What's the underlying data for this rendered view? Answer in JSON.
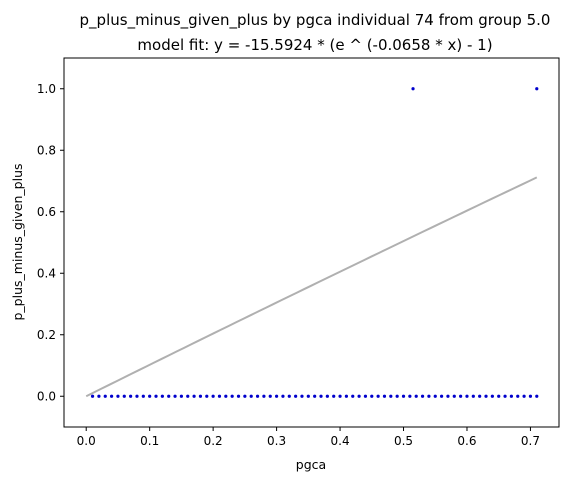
{
  "chart_data": {
    "type": "scatter",
    "title": "p_plus_minus_given_plus by pgca individual 74 from group 5.0",
    "subtitle": "model fit: y = -15.5924 * (e ^ (-0.0658 * x) - 1)",
    "xlabel": "pgca",
    "ylabel": "p_plus_minus_given_plus",
    "xlim": [
      -0.035,
      0.745
    ],
    "ylim": [
      -0.1,
      1.1
    ],
    "xticks": [
      0.0,
      0.1,
      0.2,
      0.3,
      0.4,
      0.5,
      0.6,
      0.7
    ],
    "yticks": [
      0.0,
      0.2,
      0.4,
      0.6,
      0.8,
      1.0
    ],
    "grid": false,
    "point_color": "#0000cc",
    "fit_color": "#b0b0b0",
    "series": [
      {
        "points": [
          [
            0.01,
            0.0
          ],
          [
            0.02,
            0.0
          ],
          [
            0.03,
            0.0
          ],
          [
            0.04,
            0.0
          ],
          [
            0.05,
            0.0
          ],
          [
            0.06,
            0.0
          ],
          [
            0.07,
            0.0
          ],
          [
            0.08,
            0.0
          ],
          [
            0.09,
            0.0
          ],
          [
            0.1,
            0.0
          ],
          [
            0.11,
            0.0
          ],
          [
            0.12,
            0.0
          ],
          [
            0.13,
            0.0
          ],
          [
            0.14,
            0.0
          ],
          [
            0.15,
            0.0
          ],
          [
            0.16,
            0.0
          ],
          [
            0.17,
            0.0
          ],
          [
            0.18,
            0.0
          ],
          [
            0.19,
            0.0
          ],
          [
            0.2,
            0.0
          ],
          [
            0.21,
            0.0
          ],
          [
            0.22,
            0.0
          ],
          [
            0.23,
            0.0
          ],
          [
            0.24,
            0.0
          ],
          [
            0.25,
            0.0
          ],
          [
            0.26,
            0.0
          ],
          [
            0.27,
            0.0
          ],
          [
            0.28,
            0.0
          ],
          [
            0.29,
            0.0
          ],
          [
            0.3,
            0.0
          ],
          [
            0.31,
            0.0
          ],
          [
            0.32,
            0.0
          ],
          [
            0.33,
            0.0
          ],
          [
            0.34,
            0.0
          ],
          [
            0.35,
            0.0
          ],
          [
            0.36,
            0.0
          ],
          [
            0.37,
            0.0
          ],
          [
            0.38,
            0.0
          ],
          [
            0.39,
            0.0
          ],
          [
            0.4,
            0.0
          ],
          [
            0.41,
            0.0
          ],
          [
            0.42,
            0.0
          ],
          [
            0.43,
            0.0
          ],
          [
            0.44,
            0.0
          ],
          [
            0.45,
            0.0
          ],
          [
            0.46,
            0.0
          ],
          [
            0.47,
            0.0
          ],
          [
            0.48,
            0.0
          ],
          [
            0.49,
            0.0
          ],
          [
            0.5,
            0.0
          ],
          [
            0.51,
            0.0
          ],
          [
            0.52,
            0.0
          ],
          [
            0.53,
            0.0
          ],
          [
            0.54,
            0.0
          ],
          [
            0.55,
            0.0
          ],
          [
            0.56,
            0.0
          ],
          [
            0.57,
            0.0
          ],
          [
            0.58,
            0.0
          ],
          [
            0.59,
            0.0
          ],
          [
            0.6,
            0.0
          ],
          [
            0.61,
            0.0
          ],
          [
            0.62,
            0.0
          ],
          [
            0.63,
            0.0
          ],
          [
            0.64,
            0.0
          ],
          [
            0.65,
            0.0
          ],
          [
            0.66,
            0.0
          ],
          [
            0.67,
            0.0
          ],
          [
            0.68,
            0.0
          ],
          [
            0.69,
            0.0
          ],
          [
            0.7,
            0.0
          ],
          [
            0.71,
            0.0
          ],
          [
            0.515,
            1.0
          ],
          [
            0.71,
            1.0
          ]
        ]
      }
    ],
    "fit": {
      "a": -15.5924,
      "b": -0.0658,
      "x_range": [
        0.0,
        0.71
      ]
    }
  }
}
